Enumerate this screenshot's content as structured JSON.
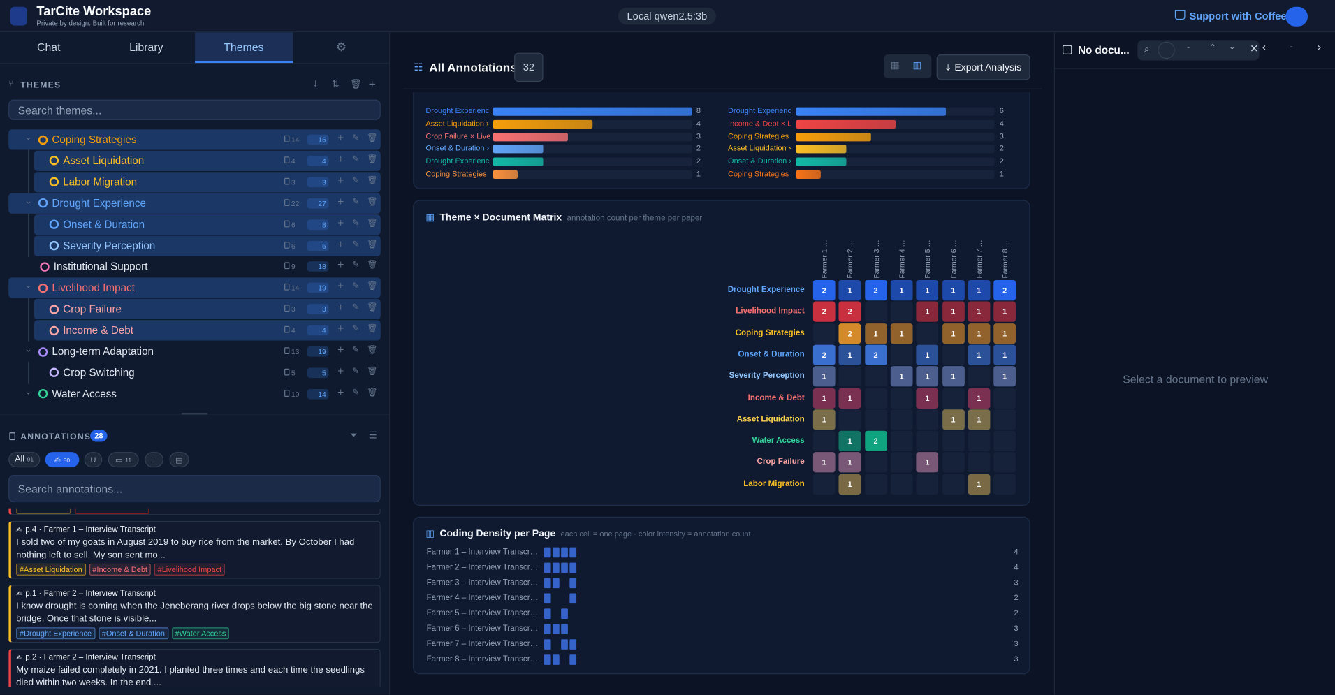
{
  "header": {
    "title": "TarCite Workspace",
    "subtitle": "Private by design. Built for research.",
    "model": "Local qwen2.5:3b",
    "support": "Support with Coffee"
  },
  "tabs": [
    "Chat",
    "Library",
    "Themes"
  ],
  "active_tab": 2,
  "themes": {
    "heading": "THEMES",
    "search_placeholder": "Search themes...",
    "items": [
      {
        "name": "Coping Strategies",
        "color": "#f59e0b",
        "docs": 14,
        "annotations": 16,
        "level": 0,
        "expandable": true,
        "highlighted": true
      },
      {
        "name": "Asset Liquidation",
        "color": "#fbbf24",
        "docs": 4,
        "annotations": 4,
        "level": 1,
        "expandable": false,
        "highlighted": true
      },
      {
        "name": "Labor Migration",
        "color": "#fbbf24",
        "docs": 3,
        "annotations": 3,
        "level": 1,
        "expandable": false,
        "highlighted": true
      },
      {
        "name": "Drought Experience",
        "color": "#60a5fa",
        "docs": 22,
        "annotations": 27,
        "level": 0,
        "expandable": true,
        "highlighted": true
      },
      {
        "name": "Onset & Duration",
        "color": "#60a5fa",
        "docs": 6,
        "annotations": 8,
        "level": 1,
        "expandable": false,
        "highlighted": true
      },
      {
        "name": "Severity Perception",
        "color": "#93c5fd",
        "docs": 6,
        "annotations": 6,
        "level": 1,
        "expandable": false,
        "highlighted": true
      },
      {
        "name": "Institutional Support",
        "color": "#f472b6",
        "docs": 9,
        "annotations": 18,
        "level": 0,
        "expandable": false,
        "highlighted": false
      },
      {
        "name": "Livelihood Impact",
        "color": "#f87171",
        "docs": 14,
        "annotations": 19,
        "level": 0,
        "expandable": true,
        "highlighted": true
      },
      {
        "name": "Crop Failure",
        "color": "#fca5a5",
        "docs": 3,
        "annotations": 3,
        "level": 1,
        "expandable": false,
        "highlighted": true
      },
      {
        "name": "Income & Debt",
        "color": "#fca5a5",
        "docs": 4,
        "annotations": 4,
        "level": 1,
        "expandable": false,
        "highlighted": true
      },
      {
        "name": "Long-term Adaptation",
        "color": "#a78bfa",
        "docs": 13,
        "annotations": 19,
        "level": 0,
        "expandable": true,
        "highlighted": false
      },
      {
        "name": "Crop Switching",
        "color": "#c4b5fd",
        "docs": 5,
        "annotations": 5,
        "level": 1,
        "expandable": false,
        "highlighted": false
      },
      {
        "name": "Water Access",
        "color": "#34d399",
        "docs": 10,
        "annotations": 14,
        "level": 0,
        "expandable": true,
        "highlighted": false
      }
    ]
  },
  "annotations": {
    "heading": "ANNOTATIONS",
    "count": 28,
    "filters": [
      {
        "label": "All",
        "count": 91
      },
      {
        "count": 80
      },
      {
        "count": 11
      }
    ],
    "search_placeholder": "Search annotations...",
    "cards": [
      {
        "meta": "p.4 · Farmer 1 – Interview Transcript",
        "border": "#fbbf24",
        "text": "I sold two of my goats in August 2019 to buy rice from the market. By October I had nothing left to sell. My son sent mo...",
        "tags": [
          {
            "name": "#Asset Liquidation",
            "color": "#fbbf24"
          },
          {
            "name": "#Income & Debt",
            "color": "#f87171"
          },
          {
            "name": "#Livelihood Impact",
            "color": "#ef4444"
          }
        ]
      },
      {
        "meta": "p.1 · Farmer 2 – Interview Transcript",
        "border": "#fbbf24",
        "text": "I know drought is coming when the Jeneberang river drops below the big stone near the bridge. Once that stone is visible...",
        "tags": [
          {
            "name": "#Drought Experience",
            "color": "#60a5fa"
          },
          {
            "name": "#Onset & Duration",
            "color": "#60a5fa"
          },
          {
            "name": "#Water Access",
            "color": "#34d399"
          }
        ]
      },
      {
        "meta": "p.2 · Farmer 2 – Interview Transcript",
        "border": "#ef4444",
        "text": "My maize failed completely in 2021. I planted three times and each time the seedlings died within two weeks. In the end ...",
        "tags": []
      }
    ]
  },
  "main": {
    "title": "All Annotations",
    "count": 32,
    "export": "Export Analysis",
    "top_lists": [
      [
        {
          "label": "Drought Experienc",
          "value": 8,
          "color": "#3b82f6"
        },
        {
          "label": "Asset Liquidation ›",
          "value": 4,
          "color": "#f59e0b"
        },
        {
          "label": "Crop Failure × Live",
          "value": 3,
          "color": "#f87171"
        },
        {
          "label": "Onset & Duration ›",
          "value": 2,
          "color": "#60a5fa"
        },
        {
          "label": "Drought Experienc",
          "value": 2,
          "color": "#14b8a6"
        },
        {
          "label": "Coping Strategies",
          "value": 1,
          "color": "#fb923c"
        }
      ],
      [
        {
          "label": "Drought Experienc",
          "value": 6,
          "color": "#3b82f6"
        },
        {
          "label": "Income & Debt × L",
          "value": 4,
          "color": "#ef4444"
        },
        {
          "label": "Coping Strategies",
          "value": 3,
          "color": "#f59e0b"
        },
        {
          "label": "Asset Liquidation ›",
          "value": 2,
          "color": "#fbbf24"
        },
        {
          "label": "Onset & Duration ›",
          "value": 2,
          "color": "#14b8a6"
        },
        {
          "label": "Coping Strategies",
          "value": 1,
          "color": "#f97316"
        }
      ]
    ],
    "matrix": {
      "title": "Theme × Document Matrix",
      "subtitle": "annotation count per theme per paper",
      "columns": [
        "Farmer 1 …",
        "Farmer 2 …",
        "Farmer 3 …",
        "Farmer 4 …",
        "Farmer 5 …",
        "Farmer 6 …",
        "Farmer 7 …",
        "Farmer 8 …"
      ],
      "rows": [
        {
          "name": "Drought Experience",
          "label_color": "#60a5fa",
          "color": "#2563eb",
          "values": [
            2,
            1,
            2,
            1,
            1,
            1,
            1,
            2
          ]
        },
        {
          "name": "Livelihood Impact",
          "label_color": "#f87171",
          "color": "#c8303f",
          "values": [
            2,
            2,
            null,
            null,
            1,
            1,
            1,
            1
          ]
        },
        {
          "name": "Coping Strategies",
          "label_color": "#fbbf24",
          "color": "#d4892a",
          "values": [
            null,
            2,
            1,
            1,
            null,
            1,
            1,
            1
          ]
        },
        {
          "name": "Onset & Duration",
          "label_color": "#60a5fa",
          "color": "#3a6fd0",
          "values": [
            2,
            1,
            2,
            null,
            1,
            null,
            1,
            1
          ]
        },
        {
          "name": "Severity Perception",
          "label_color": "#93c5fd",
          "color": "#6a82c0",
          "values": [
            1,
            null,
            null,
            1,
            1,
            1,
            null,
            1
          ]
        },
        {
          "name": "Income & Debt",
          "label_color": "#f87171",
          "color": "#b03d62",
          "values": [
            1,
            1,
            null,
            null,
            1,
            null,
            1,
            null
          ]
        },
        {
          "name": "Asset Liquidation",
          "label_color": "#fcd34d",
          "color": "#b09a58",
          "values": [
            1,
            null,
            null,
            null,
            null,
            1,
            1,
            null
          ]
        },
        {
          "name": "Water Access",
          "label_color": "#34d399",
          "color": "#10a37f",
          "values": [
            null,
            1,
            2,
            null,
            null,
            null,
            null,
            null
          ]
        },
        {
          "name": "Crop Failure",
          "label_color": "#fca5a5",
          "color": "#b07a9c",
          "values": [
            1,
            1,
            null,
            null,
            1,
            null,
            null,
            null
          ]
        },
        {
          "name": "Labor Migration",
          "label_color": "#fbbf24",
          "color": "#b09450",
          "values": [
            null,
            1,
            null,
            null,
            null,
            null,
            1,
            null
          ]
        }
      ]
    },
    "density": {
      "title": "Coding Density per Page",
      "subtitle": "each cell = one page · color intensity = annotation count",
      "color": "#3563c9",
      "rows": [
        {
          "name": "Farmer 1 – Interview Transcr…",
          "total": 4,
          "pages": [
            1,
            1,
            1,
            1
          ]
        },
        {
          "name": "Farmer 2 – Interview Transcr…",
          "total": 4,
          "pages": [
            1,
            1,
            1,
            1
          ]
        },
        {
          "name": "Farmer 3 – Interview Transcr…",
          "total": 3,
          "pages": [
            1,
            1,
            0,
            1
          ]
        },
        {
          "name": "Farmer 4 – Interview Transcr…",
          "total": 2,
          "pages": [
            1,
            0,
            0,
            1
          ]
        },
        {
          "name": "Farmer 5 – Interview Transcr…",
          "total": 2,
          "pages": [
            1,
            0,
            1,
            0
          ]
        },
        {
          "name": "Farmer 6 – Interview Transcr…",
          "total": 3,
          "pages": [
            1,
            1,
            1,
            0
          ]
        },
        {
          "name": "Farmer 7 – Interview Transcr…",
          "total": 3,
          "pages": [
            1,
            0,
            1,
            1
          ]
        },
        {
          "name": "Farmer 8 – Interview Transcr…",
          "total": 3,
          "pages": [
            1,
            1,
            0,
            1
          ]
        }
      ]
    }
  },
  "preview": {
    "title": "No docu...",
    "empty": "Select a document to preview"
  }
}
